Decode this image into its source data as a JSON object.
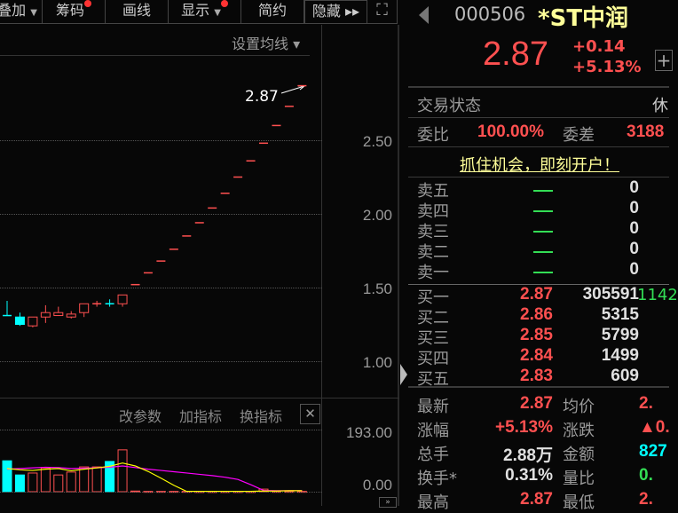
{
  "toolbar": {
    "overlay": "叠加",
    "chips": "筹码",
    "draw": "画线",
    "display": "显示",
    "simple": "简约",
    "hide": "隐藏 ▸▸"
  },
  "chart": {
    "ma_setting": "设置均线 ▾",
    "last_price_label": "2.87",
    "price_ticks": [
      "2.50",
      "2.00",
      "1.50",
      "1.00"
    ],
    "indicator_buttons": {
      "params": "改参数",
      "add": "加指标",
      "switch": "换指标"
    },
    "volume_ticks": [
      "193.00",
      "0.00"
    ]
  },
  "chart_data": {
    "type": "candlestick",
    "price_axis": {
      "ticks": [
        2.5,
        2.0,
        1.5,
        1.0
      ]
    },
    "candles": [
      {
        "o": 1.31,
        "h": 1.41,
        "l": 1.31,
        "c": 1.31,
        "color": "cyan"
      },
      {
        "o": 1.3,
        "h": 1.33,
        "l": 1.24,
        "c": 1.25,
        "color": "cyan"
      },
      {
        "o": 1.24,
        "h": 1.3,
        "l": 1.23,
        "c": 1.3,
        "color": "red"
      },
      {
        "o": 1.3,
        "h": 1.38,
        "l": 1.26,
        "c": 1.33,
        "color": "red"
      },
      {
        "o": 1.31,
        "h": 1.37,
        "l": 1.31,
        "c": 1.33,
        "color": "red"
      },
      {
        "o": 1.3,
        "h": 1.34,
        "l": 1.29,
        "c": 1.32,
        "color": "red"
      },
      {
        "o": 1.33,
        "h": 1.39,
        "l": 1.3,
        "c": 1.39,
        "color": "red"
      },
      {
        "o": 1.39,
        "h": 1.41,
        "l": 1.37,
        "c": 1.39,
        "color": "red"
      },
      {
        "o": 1.39,
        "h": 1.42,
        "l": 1.37,
        "c": 1.39,
        "color": "cyan"
      },
      {
        "o": 1.39,
        "h": 1.45,
        "l": 1.37,
        "c": 1.45,
        "color": "red"
      },
      {
        "o": 1.52,
        "h": 1.52,
        "l": 1.52,
        "c": 1.52,
        "color": "red"
      },
      {
        "o": 1.6,
        "h": 1.6,
        "l": 1.6,
        "c": 1.6,
        "color": "red"
      },
      {
        "o": 1.68,
        "h": 1.68,
        "l": 1.68,
        "c": 1.68,
        "color": "red"
      },
      {
        "o": 1.76,
        "h": 1.76,
        "l": 1.76,
        "c": 1.76,
        "color": "red"
      },
      {
        "o": 1.85,
        "h": 1.85,
        "l": 1.85,
        "c": 1.85,
        "color": "red"
      },
      {
        "o": 1.94,
        "h": 1.94,
        "l": 1.94,
        "c": 1.94,
        "color": "red"
      },
      {
        "o": 2.04,
        "h": 2.04,
        "l": 2.04,
        "c": 2.04,
        "color": "red"
      },
      {
        "o": 2.14,
        "h": 2.14,
        "l": 2.14,
        "c": 2.14,
        "color": "red"
      },
      {
        "o": 2.25,
        "h": 2.25,
        "l": 2.25,
        "c": 2.25,
        "color": "red"
      },
      {
        "o": 2.36,
        "h": 2.36,
        "l": 2.36,
        "c": 2.36,
        "color": "red"
      },
      {
        "o": 2.48,
        "h": 2.48,
        "l": 2.48,
        "c": 2.48,
        "color": "red"
      },
      {
        "o": 2.6,
        "h": 2.6,
        "l": 2.6,
        "c": 2.6,
        "color": "red"
      },
      {
        "o": 2.73,
        "h": 2.73,
        "l": 2.73,
        "c": 2.73,
        "color": "red"
      },
      {
        "o": 2.87,
        "h": 2.87,
        "l": 2.87,
        "c": 2.87,
        "color": "red"
      }
    ],
    "volume": [
      96,
      52,
      58,
      74,
      52,
      61,
      77,
      77,
      94,
      130,
      2,
      1,
      1,
      1,
      1,
      0.5,
      0.5,
      0.5,
      0.5,
      0.5,
      8,
      1,
      1,
      1
    ],
    "ma5": [
      72,
      68,
      66,
      70,
      72,
      65,
      70,
      74,
      79,
      89,
      80,
      63,
      42,
      20,
      1,
      1,
      1,
      1,
      1,
      1,
      2,
      2,
      3,
      3
    ],
    "ma10": [
      70,
      72,
      74,
      76,
      75,
      72,
      73,
      74,
      76,
      80,
      75,
      70,
      66,
      62,
      58,
      54,
      50,
      45,
      38,
      22,
      4,
      3,
      3,
      3
    ],
    "volume_axis": {
      "ticks": [
        193,
        0
      ]
    }
  },
  "quote": {
    "code": "000506",
    "name": "*ST中润",
    "price": "2.87",
    "change": "+0.14",
    "change_pct": "+5.13%",
    "status_label": "交易状态",
    "status_value": "休",
    "ratio_label": "委比",
    "ratio_value": "100.00%",
    "diff_label": "委差",
    "diff_value": "3188",
    "promo": "抓住机会，即刻开户！",
    "asks": [
      {
        "label": "卖五",
        "price": "—",
        "vol": "0"
      },
      {
        "label": "卖四",
        "price": "—",
        "vol": "0"
      },
      {
        "label": "卖三",
        "price": "—",
        "vol": "0"
      },
      {
        "label": "卖二",
        "price": "—",
        "vol": "0"
      },
      {
        "label": "卖一",
        "price": "—",
        "vol": "0"
      }
    ],
    "bids": [
      {
        "label": "买一",
        "price": "2.87",
        "vol": "305591",
        "delta": "1142"
      },
      {
        "label": "买二",
        "price": "2.86",
        "vol": "5315"
      },
      {
        "label": "买三",
        "price": "2.85",
        "vol": "5799"
      },
      {
        "label": "买四",
        "price": "2.84",
        "vol": "1499"
      },
      {
        "label": "买五",
        "price": "2.83",
        "vol": "609"
      }
    ],
    "stats": [
      {
        "l1": "最新",
        "v1": "2.87",
        "l2": "均价",
        "v2": "2."
      },
      {
        "l1": "涨幅",
        "v1": "+5.13%",
        "l2": "涨跌",
        "v2": "▲0."
      },
      {
        "l1": "总手",
        "v1": "2.88万",
        "l2": "金额",
        "v2": "827"
      },
      {
        "l1": "换手*",
        "v1": "0.31%",
        "l2": "量比",
        "v2": "0."
      },
      {
        "l1": "最高",
        "v1": "2.87",
        "l2": "最低",
        "v2": "2."
      }
    ]
  },
  "colors": {
    "up": "#ff5050",
    "down": "#00ffff",
    "ma5": "#ffff00",
    "ma10": "#ff00ff",
    "flat": "#33dd55"
  }
}
